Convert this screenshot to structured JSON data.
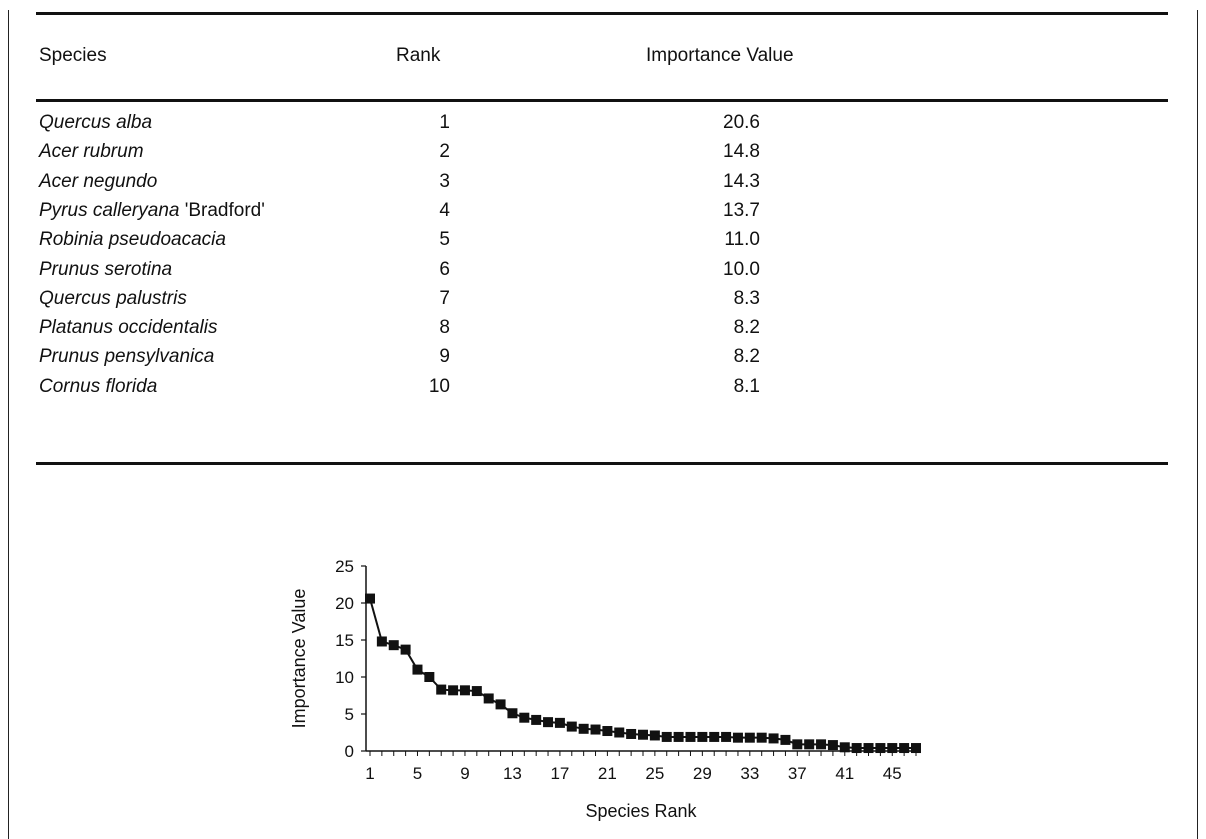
{
  "table": {
    "headers": [
      "Species",
      "Rank",
      "Importance Value"
    ],
    "rows": [
      {
        "species": "Quercus alba",
        "suffix": "",
        "rank": "1",
        "value": "20.6"
      },
      {
        "species": "Acer rubrum",
        "suffix": "",
        "rank": "2",
        "value": "14.8"
      },
      {
        "species": "Acer negundo",
        "suffix": "",
        "rank": "3",
        "value": "14.3"
      },
      {
        "species": "Pyrus calleryana",
        "suffix": " 'Bradford'",
        "rank": "4",
        "value": "13.7"
      },
      {
        "species": "Robinia pseudoacacia",
        "suffix": "",
        "rank": "5",
        "value": "11.0"
      },
      {
        "species": "Prunus serotina",
        "suffix": "",
        "rank": "6",
        "value": "10.0"
      },
      {
        "species": "Quercus palustris",
        "suffix": "",
        "rank": "7",
        "value": "8.3"
      },
      {
        "species": "Platanus occidentalis",
        "suffix": "",
        "rank": "8",
        "value": "8.2"
      },
      {
        "species": "Prunus pensylvanica",
        "suffix": "",
        "rank": "9",
        "value": "8.2"
      },
      {
        "species": "Cornus florida",
        "suffix": "",
        "rank": "10",
        "value": "8.1"
      }
    ]
  },
  "chart_data": {
    "type": "line",
    "xlabel": "Species Rank",
    "ylabel": "Importance Value",
    "xlim": [
      1,
      47
    ],
    "ylim": [
      0,
      25
    ],
    "x_ticks": [
      1,
      5,
      9,
      13,
      17,
      21,
      25,
      29,
      33,
      37,
      41,
      45
    ],
    "y_ticks": [
      0,
      5,
      10,
      15,
      20,
      25
    ],
    "marker": "square",
    "series": [
      {
        "x": [
          1,
          2,
          3,
          4,
          5,
          6,
          7,
          8,
          9,
          10,
          11,
          12,
          13,
          14,
          15,
          16,
          17,
          18,
          19,
          20,
          21,
          22,
          23,
          24,
          25,
          26,
          27,
          28,
          29,
          30,
          31,
          32,
          33,
          34,
          35,
          36,
          37,
          38,
          39,
          40,
          41,
          42,
          43,
          44,
          45,
          46,
          47
        ],
        "values": [
          20.6,
          14.8,
          14.3,
          13.7,
          11.0,
          10.0,
          8.3,
          8.2,
          8.2,
          8.1,
          7.1,
          6.3,
          5.1,
          4.5,
          4.2,
          3.9,
          3.8,
          3.3,
          3.0,
          2.9,
          2.7,
          2.5,
          2.3,
          2.2,
          2.1,
          1.9,
          1.9,
          1.9,
          1.9,
          1.9,
          1.9,
          1.8,
          1.8,
          1.8,
          1.7,
          1.5,
          0.9,
          0.9,
          0.9,
          0.8,
          0.5,
          0.4,
          0.4,
          0.4,
          0.4,
          0.4,
          0.4
        ]
      }
    ]
  }
}
